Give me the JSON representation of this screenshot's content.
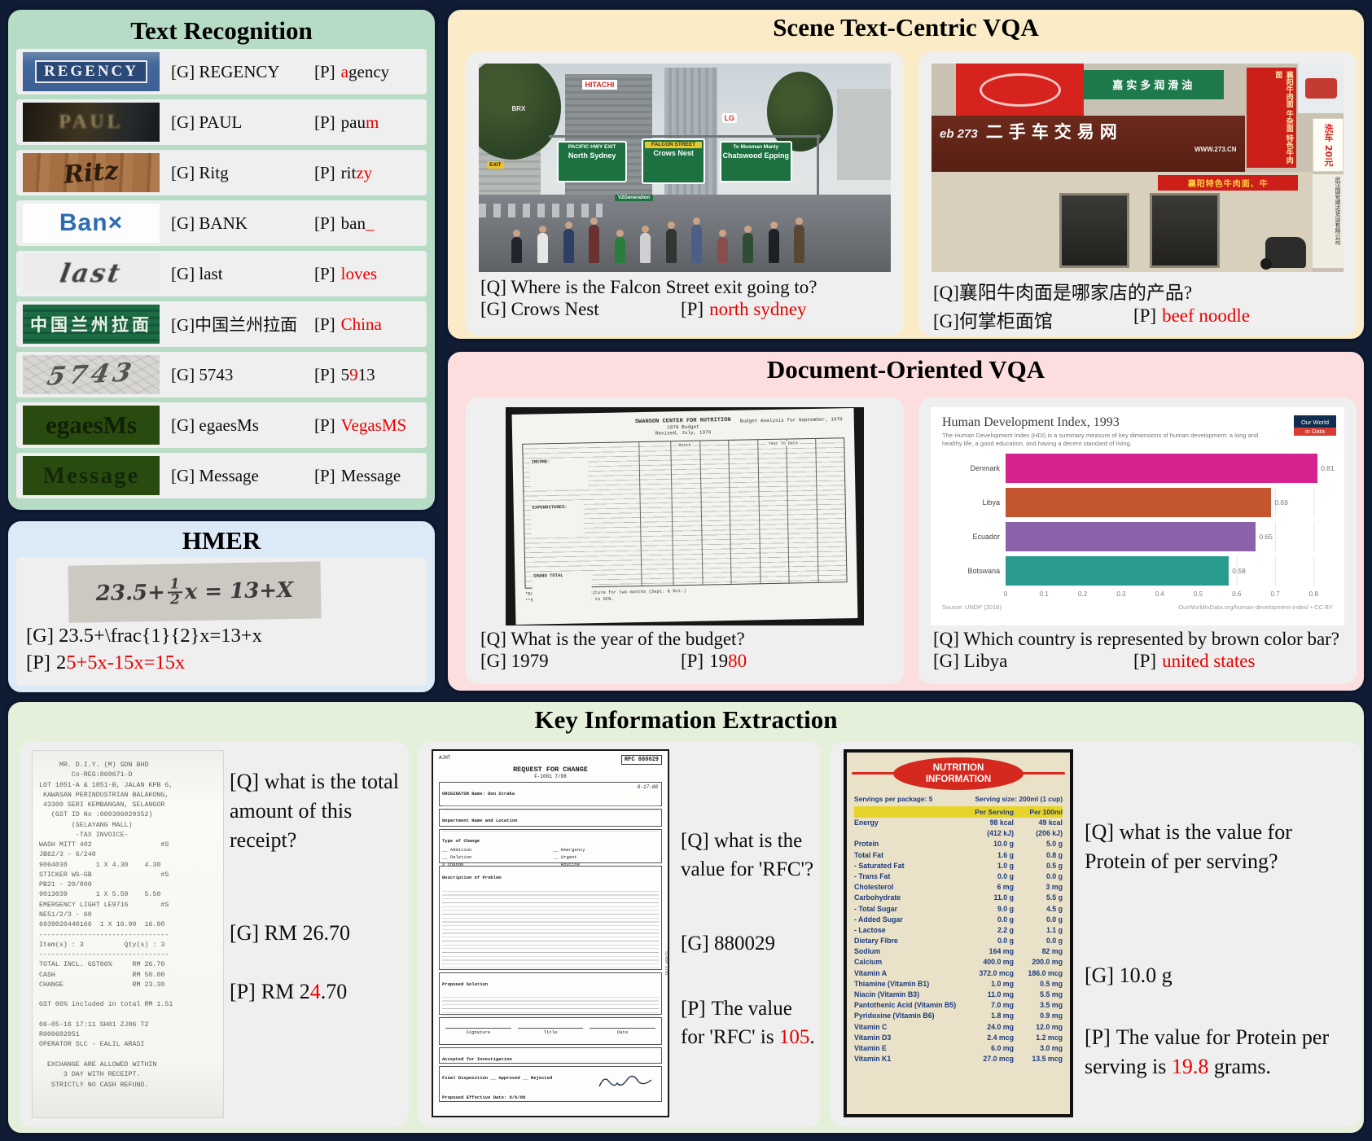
{
  "colors": {
    "error_red": "#e80000",
    "mint_panel": "#b7dcc6",
    "hmer_panel": "#dce9f7",
    "scene_panel": "#fbecc7",
    "doc_panel": "#fcdede",
    "kie_panel": "#e4f0da",
    "card_gray": "#efefef"
  },
  "text_recognition": {
    "title": "Text Recognition",
    "rows": [
      {
        "image": "regency",
        "image_text": "REGENCY",
        "g": "[G] REGENCY",
        "p_label": "[P]",
        "p_before": "",
        "p_red": "a",
        "p_after": "gency"
      },
      {
        "image": "paul",
        "image_text": "PAUL",
        "g": "[G] PAUL",
        "p_label": "[P]",
        "p_before": "pau",
        "p_red": "m",
        "p_after": ""
      },
      {
        "image": "ritz",
        "image_text": "Ritz",
        "g": "[G] Ritg",
        "p_label": "[P]",
        "p_before": "rit",
        "p_red": "zy",
        "p_after": ""
      },
      {
        "image": "bank",
        "image_text": "Ban×",
        "g": "[G] BANK",
        "p_label": "[P]",
        "p_before": "ban",
        "p_red": "_",
        "p_after": ""
      },
      {
        "image": "last",
        "image_text": "last",
        "g": "[G] last",
        "p_label": "[P]",
        "p_before": "",
        "p_red": "loves",
        "p_after": ""
      },
      {
        "image": "cn",
        "image_text": "中国兰州拉面",
        "g": "[G]中国兰州拉面",
        "p_label": "[P]",
        "p_before": "",
        "p_red": "China",
        "p_after": ""
      },
      {
        "image": "digits",
        "image_text": "5743",
        "g": "[G] 5743",
        "p_label": "[P]",
        "p_before": "5",
        "p_red": "9",
        "p_after": "13"
      },
      {
        "image": "egaesms",
        "image_text": "egaesMs",
        "g": "[G] egaesMs",
        "p_label": "[P]",
        "p_before": "",
        "p_red": "VegasMS",
        "p_after": ""
      },
      {
        "image": "message",
        "image_text": "Message",
        "g": "[G] Message",
        "p_label": "[P]",
        "p_before": "Message",
        "p_red": "",
        "p_after": ""
      }
    ]
  },
  "hmer": {
    "title": "HMER",
    "formula_left": "23.5+",
    "formula_num": "1",
    "formula_den": "2",
    "formula_right": "x = 13+X",
    "g": "[G] 23.5+\\frac{1}{2}x=13+x",
    "p_label": "[P]",
    "p_before": "2",
    "p_red": "5+5x-15x=15x"
  },
  "scene_vqa": {
    "title": "Scene Text-Centric VQA",
    "left": {
      "q": "[Q] Where is the Falcon Street exit going to?",
      "g": "[G] Crows Nest",
      "p_label": "[P]",
      "p_red": "north sydney",
      "photo": {
        "sign1_top": "PACIFIC HWY EXIT",
        "sign1_main": "North Sydney",
        "sign2_top": "FALCON STREET",
        "sign2_main": "Crows Nest",
        "sign3_top": "To Mosman Manly",
        "sign3_main": "Chatswood Epping",
        "building1": "HITACHI",
        "building2": "LG",
        "building3": "BRX",
        "exit": "EXIT",
        "crowd_banner": "V2Generation"
      }
    },
    "right": {
      "q": "[Q]襄阳牛肉面是哪家店的产品?",
      "g": "[G]何掌柜面馆",
      "p_label": "[P]",
      "p_red": "beef noodle",
      "photo": {
        "green_sign": "嘉实多润滑油",
        "main_sign_logo": "eb 273",
        "main_sign": "二手车交易网",
        "main_sign_sub": "WWW.273.CN",
        "red_side": "襄阳牛肉面 牛杂面 特色牛肉面",
        "banner": "襄阳特色牛肉面、牛",
        "wash_sign": "洗车 20元",
        "vertical_sign": "武汉国安顺达货运有限公司"
      }
    }
  },
  "doc_vqa": {
    "title": "Document-Oriented VQA",
    "left": {
      "q": "[Q] What is the year of the budget?",
      "g": "[G] 1979",
      "p_label": "[P]",
      "p_before": "19",
      "p_red": "80",
      "doc": {
        "header1": "SWANSON CENTER FOR NUTRITION",
        "header2": "1979 Budget",
        "header3": "Revised, July, 1979",
        "header_right": "Budget Analysis for September, 1979",
        "section1": "INCOME:",
        "section2": "EXPENDITURES:",
        "footer": "GRAND TOTAL",
        "col_month": "Month",
        "col_ytd": "Year To Date",
        "footnote1": "*October will show expenditure for two months (Sept. & Oct.)",
        "footnote2": "**$45d will be reimbursed to SCN."
      }
    },
    "right": {
      "q": "[Q] Which country is represented by brown color bar?",
      "g": "[G] Libya",
      "p_label": "[P]",
      "p_red": "united states"
    }
  },
  "chart_data": {
    "type": "bar",
    "orientation": "horizontal",
    "title": "Human Development Index, 1993",
    "subtitle": "The Human Development Index (HDI) is a summary measure of key dimensions of human development: a long and healthy life, a good education, and having a decent standard of living.",
    "categories": [
      "Denmark",
      "Libya",
      "Ecuador",
      "Botswana"
    ],
    "values": [
      0.81,
      0.69,
      0.65,
      0.58
    ],
    "bar_colors": [
      "#d6228e",
      "#c4562f",
      "#8b62a9",
      "#2a9c8f"
    ],
    "xlim": [
      0,
      0.85
    ],
    "xticks": [
      0,
      0.1,
      0.2,
      0.3,
      0.4,
      0.5,
      0.6,
      0.7,
      0.8
    ],
    "grid": true,
    "legend": false,
    "source": "Source: UNDP (2018)",
    "attribution": "OurWorldInData.org/human-development-index/ • CC BY",
    "badge_line1": "Our World",
    "badge_line2": "in Data"
  },
  "kie": {
    "title": "Key Information Extraction",
    "card1": {
      "q": "[Q] what is the total amount of this receipt?",
      "g": "[G] RM 26.70",
      "p_label": "[P]",
      "p_before": "RM 2",
      "p_red": "4",
      "p_after": ".70",
      "receipt_lines": [
        "     MR. D.I.Y. (M) SDN BHD",
        "        Co-REG:860671-D",
        "LOT 1851-A & 1851-B, JALAN KPB 6,",
        " KAWASAN PERINDUSTRIAN BALAKONG,",
        " 43300 SERI KEMBANGAN, SELANGOR",
        "   (GST ID No :000306020352)",
        "        (SELAYANG MALL)",
        "         -TAX INVOICE-",
        "WASH MITT 402                 #S",
        "JB62/3 - 6/240",
        "9064038       1 X 4.30    4.30",
        "STICKER WS-GB                 #S",
        "PB21 - 20/800",
        "9013039       1 X 5.50    5.50",
        "EMERGENCY LIGHT LE9716        #S",
        "NE51/2/3 - 60",
        "6939020440166  1 X 16.90  16.90",
        "--------------------------------",
        "Item(s) : 3          Qty(s) : 3",
        "--------------------------------",
        "TOTAL INCL. GST06%     RM 26.70",
        "CASH                   RM 50.00",
        "CHANGE                 RM 23.30",
        "",
        "GST 06% included in total RM 1.51",
        "",
        "06-05-16 17:11 SH01 ZJ06 T2",
        "R000602051",
        "OPERATOR SLC - EALIL ARASI",
        "",
        "  EXCHANGE ARE ALLOWED WITHIN",
        "      3 DAY WITH RECEIPT.",
        "   STRICTLY NO CASH REFUND."
      ]
    },
    "card2": {
      "q": "[Q] what is the value for 'RFC'?",
      "g": "[G] 880029",
      "p_label": "[P]",
      "p_before": "The value for 'RFC' is ",
      "p_red": "105",
      "p_after": ".",
      "form": {
        "corner": "AJHT",
        "rfc": "RFC  880029",
        "title": "REQUEST FOR CHANGE",
        "form_no": "F-1001  7/88",
        "originator": "ORIGINATOR Name: Don Straka",
        "date": "8-17-88",
        "received": "Received By D. Marsh",
        "dept": "Department Name and Location",
        "type": "Type of Change",
        "opt1": "__ Addition",
        "opt2": "__ Deletion",
        "opt3": "X  Change",
        "opt4": "__ Emergency",
        "opt5": "__ Urgent",
        "opt6": "__ Routine",
        "desc": "Description of Problem",
        "solution": "Proposed Solution",
        "sig_label": "Signature",
        "title_label": "Title",
        "date_label": "Date",
        "accepted": "Accepted for Investigation",
        "final": "Final Disposition   __ Approved   __ Rejected",
        "effective": "Proposed Effective Date:  9/6/88",
        "side": "51464 3791"
      }
    },
    "card3": {
      "q": "[Q] what is the value for Protein of per serving?",
      "g": "[G] 10.0 g",
      "p_label": "[P]",
      "p_before": "The value for Protein per serving is ",
      "p_red": "19.8",
      "p_after": " grams.",
      "nutrition": {
        "header1": "NUTRITION",
        "header2": "INFORMATION",
        "servings": "Servings per package: 5",
        "serving_size": "Serving size: 200ml (1 cup)",
        "col1": "Per Serving",
        "col2": "Per 100ml",
        "rows": [
          [
            "Energy",
            "98 kcal",
            "49 kcal"
          ],
          [
            "",
            "(412 kJ)",
            "(206 kJ)"
          ],
          [
            "Protein",
            "10.0 g",
            "5.0 g"
          ],
          [
            "Total Fat",
            "1.6 g",
            "0.8 g"
          ],
          [
            "- Saturated Fat",
            "1.0 g",
            "0.5 g"
          ],
          [
            "- Trans Fat",
            "0.0 g",
            "0.0 g"
          ],
          [
            "Cholesterol",
            "6 mg",
            "3 mg"
          ],
          [
            "Carbohydrate",
            "11.0 g",
            "5.5 g"
          ],
          [
            "- Total Sugar",
            "9.0 g",
            "4.5 g"
          ],
          [
            "- Added Sugar",
            "0.0 g",
            "0.0 g"
          ],
          [
            "- Lactose",
            "2.2 g",
            "1.1 g"
          ],
          [
            "Dietary Fibre",
            "0.0 g",
            "0.0 g"
          ],
          [
            "Sodium",
            "164 mg",
            "82 mg"
          ],
          [
            "Calcium",
            "400.0 mg",
            "200.0 mg"
          ],
          [
            "Vitamin A",
            "372.0 mcg",
            "186.0 mcg"
          ],
          [
            "Thiamine (Vitamin B1)",
            "1.0 mg",
            "0.5 mg"
          ],
          [
            "Niacin (Vitamin B3)",
            "11.0 mg",
            "5.5 mg"
          ],
          [
            "Pantothenic Acid (Vitamin B5)",
            "7.0 mg",
            "3.5 mg"
          ],
          [
            "Pyridoxine (Vitamin B6)",
            "1.8 mg",
            "0.9 mg"
          ],
          [
            "Vitamin C",
            "24.0 mg",
            "12.0 mg"
          ],
          [
            "Vitamin D3",
            "2.4 mcg",
            "1.2 mcg"
          ],
          [
            "Vitamin E",
            "6.0 mg",
            "3.0 mg"
          ],
          [
            "Vitamin K1",
            "27.0 mcg",
            "13.5 mcg"
          ]
        ]
      }
    }
  }
}
